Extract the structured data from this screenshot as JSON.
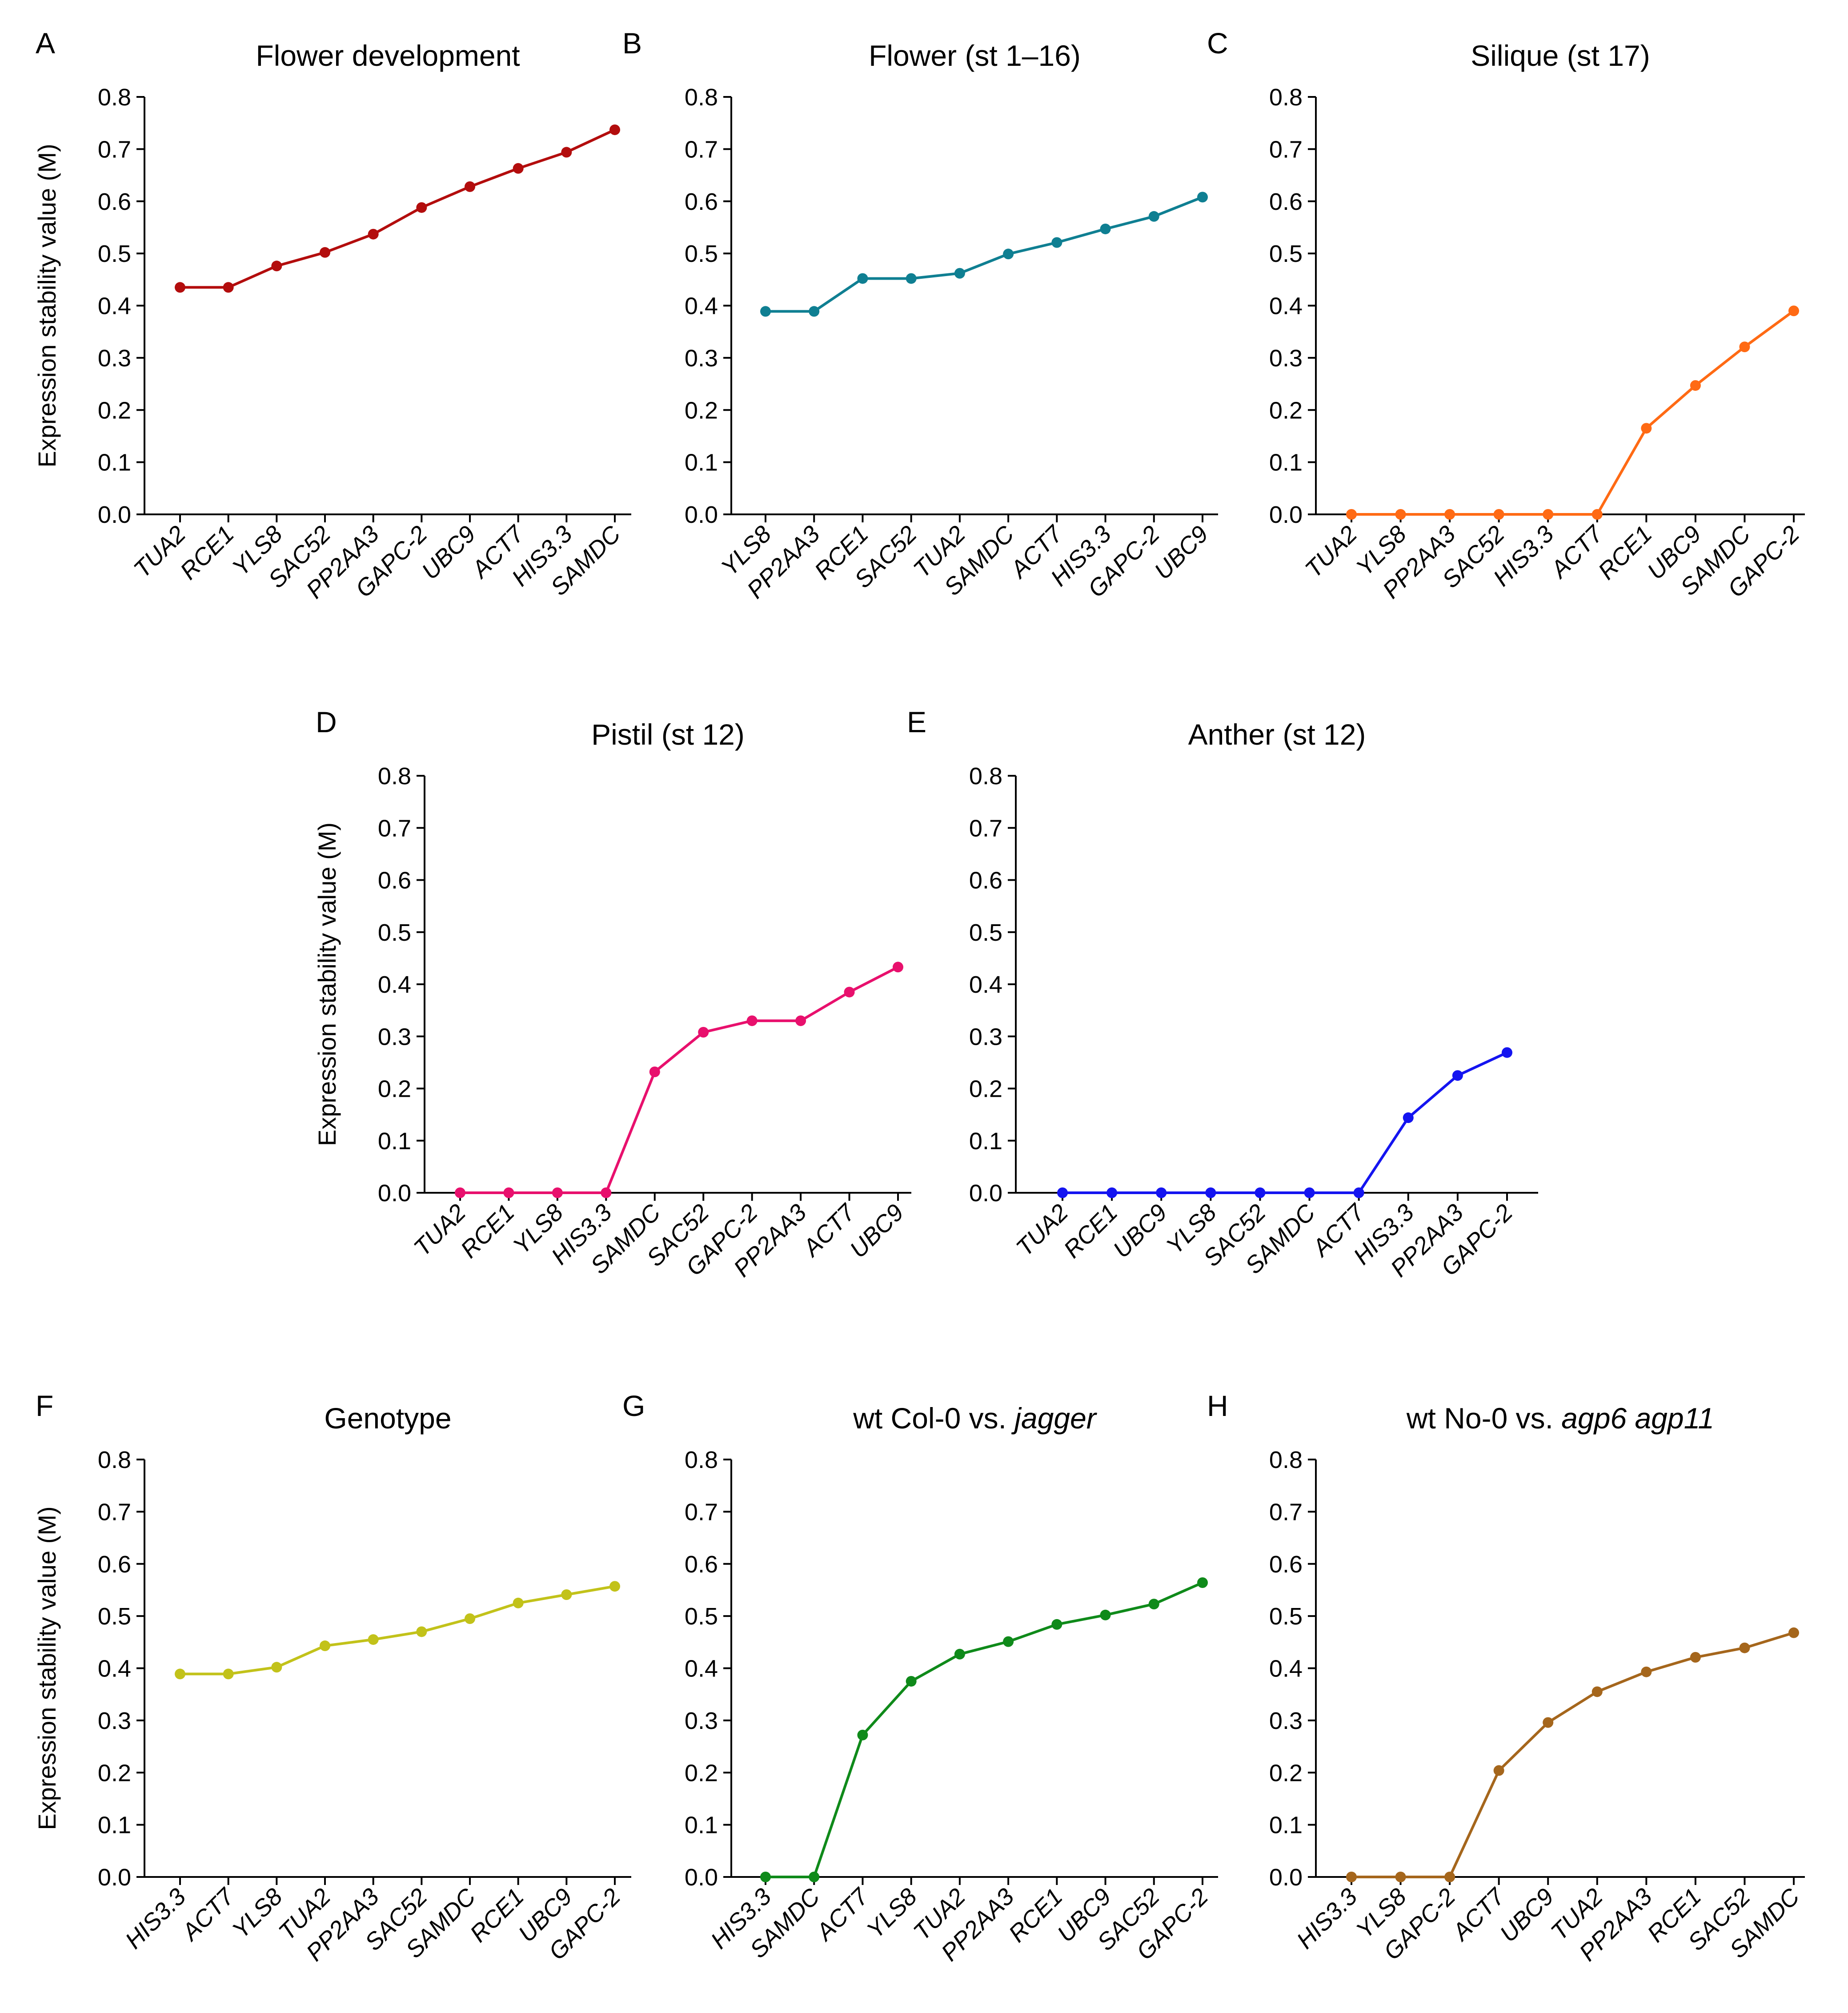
{
  "figure": {
    "ylabel": "Expression stability value (M)"
  },
  "chart_data": [
    {
      "panel": "A",
      "type": "line",
      "title": "Flower development",
      "title_italic": "",
      "color": "#b30d0d",
      "categories": [
        "TUA2",
        "RCE1",
        "YLS8",
        "SAC52",
        "PP2AA3",
        "GAPC-2",
        "UBC9",
        "ACT7",
        "HIS3.3",
        "SAMDC"
      ],
      "values": [
        0.435,
        0.435,
        0.476,
        0.502,
        0.537,
        0.588,
        0.628,
        0.663,
        0.694,
        0.737
      ],
      "ylim": [
        0,
        0.8
      ],
      "yticks": [
        "0.0",
        "0.1",
        "0.2",
        "0.3",
        "0.4",
        "0.5",
        "0.6",
        "0.7",
        "0.8"
      ],
      "show_ylabel": true
    },
    {
      "panel": "B",
      "type": "line",
      "title": "Flower (st 1–16)",
      "title_italic": "",
      "color": "#0f7f92",
      "categories": [
        "YLS8",
        "PP2AA3",
        "RCE1",
        "SAC52",
        "TUA2",
        "SAMDC",
        "ACT7",
        "HIS3.3",
        "GAPC-2",
        "UBC9"
      ],
      "values": [
        0.389,
        0.389,
        0.452,
        0.452,
        0.462,
        0.499,
        0.521,
        0.547,
        0.571,
        0.608
      ],
      "ylim": [
        0,
        0.8
      ],
      "yticks": [
        "0.0",
        "0.1",
        "0.2",
        "0.3",
        "0.4",
        "0.5",
        "0.6",
        "0.7",
        "0.8"
      ],
      "show_ylabel": false
    },
    {
      "panel": "C",
      "type": "line",
      "title": "Silique (st 17)",
      "title_italic": "",
      "color": "#ff6a14",
      "categories": [
        "TUA2",
        "YLS8",
        "PP2AA3",
        "SAC52",
        "HIS3.3",
        "ACT7",
        "RCE1",
        "UBC9",
        "SAMDC",
        "GAPC-2"
      ],
      "values": [
        0,
        0,
        0,
        0,
        0,
        0,
        0.165,
        0.247,
        0.321,
        0.39
      ],
      "ylim": [
        0,
        0.8
      ],
      "yticks": [
        "0.0",
        "0.1",
        "0.2",
        "0.3",
        "0.4",
        "0.5",
        "0.6",
        "0.7",
        "0.8"
      ],
      "show_ylabel": false
    },
    {
      "panel": "D",
      "type": "line",
      "title": "Pistil (st 12)",
      "title_italic": "",
      "color": "#e8106d",
      "categories": [
        "TUA2",
        "RCE1",
        "YLS8",
        "HIS3.3",
        "SAMDC",
        "SAC52",
        "GAPC-2",
        "PP2AA3",
        "ACT7",
        "UBC9"
      ],
      "values": [
        0,
        0,
        0,
        0,
        0.232,
        0.308,
        0.33,
        0.33,
        0.385,
        0.433
      ],
      "ylim": [
        0,
        0.8
      ],
      "yticks": [
        "0.0",
        "0.1",
        "0.2",
        "0.3",
        "0.4",
        "0.5",
        "0.6",
        "0.7",
        "0.8"
      ],
      "show_ylabel": true
    },
    {
      "panel": "E",
      "type": "line",
      "title": "Anther (st 12)",
      "title_italic": "",
      "color": "#1414f0",
      "categories": [
        "TUA2",
        "RCE1",
        "UBC9",
        "YLS8",
        "SAC52",
        "SAMDC",
        "ACT7",
        "HIS3.3",
        "PP2AA3",
        "GAPC-2"
      ],
      "values": [
        0,
        0,
        0,
        0,
        0,
        0,
        0,
        0.144,
        0.225,
        0.269
      ],
      "ylim": [
        0,
        0.8
      ],
      "yticks": [
        "0.0",
        "0.1",
        "0.2",
        "0.3",
        "0.4",
        "0.5",
        "0.6",
        "0.7",
        "0.8"
      ],
      "show_ylabel": false
    },
    {
      "panel": "F",
      "type": "line",
      "title": "Genotype",
      "title_italic": "",
      "color": "#c2c21a",
      "categories": [
        "HIS3.3",
        "ACT7",
        "YLS8",
        "TUA2",
        "PP2AA3",
        "SAC52",
        "SAMDC",
        "RCE1",
        "UBC9",
        "GAPC-2"
      ],
      "values": [
        0.389,
        0.389,
        0.402,
        0.443,
        0.455,
        0.47,
        0.495,
        0.525,
        0.541,
        0.557
      ],
      "ylim": [
        0,
        0.8
      ],
      "yticks": [
        "0.0",
        "0.1",
        "0.2",
        "0.3",
        "0.4",
        "0.5",
        "0.6",
        "0.7",
        "0.8"
      ],
      "show_ylabel": true
    },
    {
      "panel": "G",
      "type": "line",
      "title": "wt Col-0 vs. ",
      "title_italic": "jagger",
      "color": "#0f8a1a",
      "categories": [
        "HIS3.3",
        "SAMDC",
        "ACT7",
        "YLS8",
        "TUA2",
        "PP2AA3",
        "RCE1",
        "UBC9",
        "SAC52",
        "GAPC-2"
      ],
      "values": [
        0,
        0,
        0.272,
        0.375,
        0.427,
        0.451,
        0.484,
        0.502,
        0.523,
        0.564
      ],
      "ylim": [
        0,
        0.8
      ],
      "yticks": [
        "0.0",
        "0.1",
        "0.2",
        "0.3",
        "0.4",
        "0.5",
        "0.6",
        "0.7",
        "0.8"
      ],
      "show_ylabel": false
    },
    {
      "panel": "H",
      "type": "line",
      "title": "wt No-0 vs. ",
      "title_italic": "agp6 agp11",
      "color": "#a5661c",
      "categories": [
        "HIS3.3",
        "YLS8",
        "GAPC-2",
        "ACT7",
        "UBC9",
        "TUA2",
        "PP2AA3",
        "RCE1",
        "SAC52",
        "SAMDC"
      ],
      "values": [
        0,
        0,
        0,
        0.204,
        0.296,
        0.355,
        0.393,
        0.421,
        0.439,
        0.468
      ],
      "ylim": [
        0,
        0.8
      ],
      "yticks": [
        "0.0",
        "0.1",
        "0.2",
        "0.3",
        "0.4",
        "0.5",
        "0.6",
        "0.7",
        "0.8"
      ],
      "show_ylabel": false
    }
  ]
}
